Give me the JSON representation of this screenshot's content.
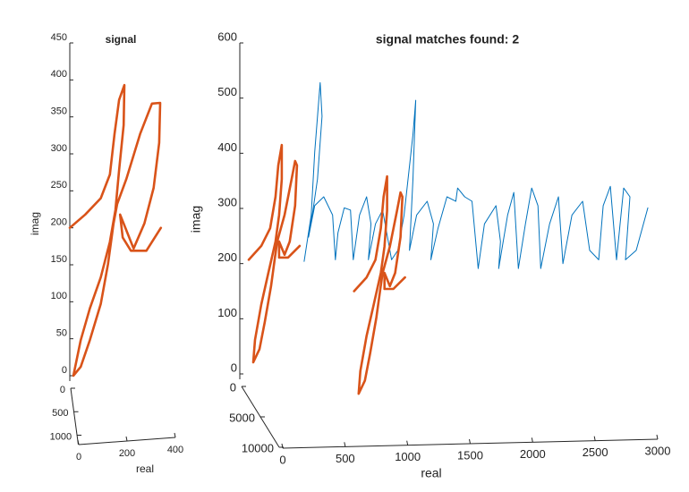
{
  "chart_data": [
    {
      "type": "line3d",
      "title": "signal",
      "xlabel": "real",
      "zlabel": "imag",
      "xlim": [
        0,
        400
      ],
      "xticks": [
        0,
        200,
        400
      ],
      "ylim": [
        0,
        1200
      ],
      "yticks": [
        0,
        500,
        1000
      ],
      "zlim": [
        0,
        450
      ],
      "zticks": [
        0,
        50,
        100,
        150,
        200,
        250,
        300,
        350,
        400,
        450
      ],
      "series": [
        {
          "color": "#d95319",
          "x": [
            0,
            64,
            128,
            166,
            185,
            204,
            226,
            223,
            204,
            189,
            166,
            128,
            83,
            45,
            15,
            45,
            83,
            128,
            158,
            181,
            196,
            234,
            291,
            340,
            374,
            370,
            347,
            309,
            264,
            208,
            219,
            253,
            317,
            377
          ],
          "values": [
            200,
            218,
            240,
            272,
            327,
            373,
            393,
            339,
            278,
            224,
            181,
            133,
            91,
            48,
            0,
            12,
            48,
            97,
            151,
            206,
            232,
            266,
            327,
            368,
            369,
            315,
            254,
            206,
            172,
            218,
            187,
            169,
            169,
            200
          ]
        }
      ]
    },
    {
      "type": "line3d",
      "title": "signal matches found: 2",
      "xlabel": "real",
      "zlabel": "imag",
      "xlim": [
        0,
        3000
      ],
      "xticks": [
        0,
        500,
        1000,
        1500,
        2000,
        2500,
        3000
      ],
      "ylim": [
        0,
        10000
      ],
      "yticks": [
        0,
        5000,
        10000
      ],
      "zlim": [
        0,
        600
      ],
      "zticks": [
        0,
        100,
        200,
        300,
        400,
        500,
        600
      ],
      "series": [
        {
          "color": "#0072bd",
          "x": [
            486,
            543,
            571,
            614,
            629,
            593,
            557,
            521,
            571,
            643,
            714,
            736,
            757,
            807,
            857,
            879,
            929,
            986,
            1021,
            1000,
            1057,
            1114,
            1186,
            1236,
            1286,
            1357,
            1379,
            1357,
            1329,
            1386,
            1471,
            1521,
            1500,
            1557,
            1629,
            1700,
            1714,
            1771,
            1829,
            1879,
            1929,
            2021,
            2057,
            2043,
            2114,
            2164,
            2200,
            2257,
            2307,
            2357,
            2379,
            2450,
            2521,
            2557,
            2629,
            2714,
            2771,
            2843,
            2879,
            2936,
            2986,
            3043,
            3093,
            3057,
            3143,
            3236
          ],
          "values": [
            204,
            288,
            402,
            528,
            467,
            353,
            297,
            248,
            305,
            321,
            288,
            207,
            256,
            301,
            297,
            207,
            288,
            321,
            272,
            207,
            272,
            297,
            207,
            224,
            288,
            434,
            496,
            353,
            224,
            288,
            313,
            272,
            207,
            264,
            321,
            313,
            337,
            321,
            313,
            191,
            272,
            305,
            240,
            191,
            288,
            329,
            191,
            272,
            337,
            305,
            191,
            272,
            321,
            200,
            288,
            313,
            224,
            207,
            305,
            340,
            207,
            337,
            321,
            207,
            224,
            301
          ]
        },
        {
          "color": "#d95319",
          "x": [
            43,
            143,
            214,
            257,
            279,
            307,
            307,
            286,
            257,
            200,
            143,
            93,
            79,
            129,
            171,
            221,
            250,
            271,
            329,
            386,
            414,
            429,
            414,
            371,
            329,
            286,
            286,
            357,
            450
          ],
          "values": [
            207,
            232,
            264,
            321,
            378,
            415,
            353,
            288,
            240,
            183,
            126,
            62,
            21,
            45,
            94,
            159,
            207,
            240,
            288,
            353,
            386,
            378,
            305,
            240,
            216,
            240,
            211,
            211,
            232
          ]
        },
        {
          "color": "#d95319",
          "x": [
            886,
            986,
            1057,
            1100,
            1122,
            1150,
            1150,
            1129,
            1100,
            1043,
            986,
            936,
            922,
            972,
            1014,
            1064,
            1093,
            1114,
            1172,
            1229,
            1257,
            1272,
            1257,
            1214,
            1172,
            1129,
            1129,
            1200,
            1293
          ],
          "values": [
            150,
            175,
            207,
            264,
            321,
            358,
            296,
            231,
            183,
            126,
            69,
            5,
            -36,
            -12,
            37,
            102,
            150,
            183,
            231,
            296,
            329,
            321,
            248,
            183,
            159,
            183,
            154,
            154,
            175
          ]
        }
      ]
    }
  ]
}
